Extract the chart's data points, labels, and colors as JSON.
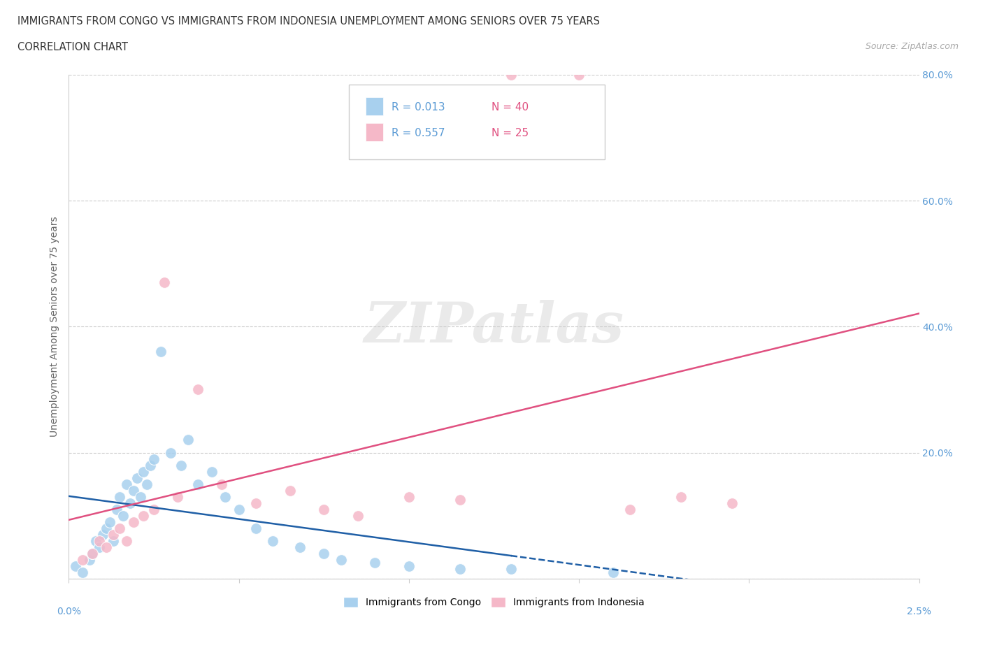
{
  "title_line1": "IMMIGRANTS FROM CONGO VS IMMIGRANTS FROM INDONESIA UNEMPLOYMENT AMONG SENIORS OVER 75 YEARS",
  "title_line2": "CORRELATION CHART",
  "source": "Source: ZipAtlas.com",
  "ylabel": "Unemployment Among Seniors over 75 years",
  "xlim": [
    0.0,
    2.5
  ],
  "ylim": [
    0.0,
    80.0
  ],
  "grid_color": "#cccccc",
  "legend_R_congo": "R = 0.013",
  "legend_N_congo": "N = 40",
  "legend_R_indonesia": "R = 0.557",
  "legend_N_indonesia": "N = 25",
  "congo_color": "#a8d0ee",
  "indonesia_color": "#f5b8c8",
  "congo_line_color": "#1f5fa6",
  "indonesia_line_color": "#e05080",
  "congo_scatter_x": [
    0.02,
    0.04,
    0.06,
    0.07,
    0.08,
    0.09,
    0.1,
    0.11,
    0.12,
    0.13,
    0.14,
    0.15,
    0.16,
    0.17,
    0.18,
    0.19,
    0.2,
    0.21,
    0.22,
    0.23,
    0.24,
    0.25,
    0.27,
    0.3,
    0.33,
    0.35,
    0.38,
    0.42,
    0.46,
    0.5,
    0.55,
    0.6,
    0.68,
    0.75,
    0.8,
    0.9,
    1.0,
    1.15,
    1.3,
    1.6
  ],
  "congo_scatter_y": [
    2.0,
    1.0,
    3.0,
    4.0,
    6.0,
    5.0,
    7.0,
    8.0,
    9.0,
    6.0,
    11.0,
    13.0,
    10.0,
    15.0,
    12.0,
    14.0,
    16.0,
    13.0,
    17.0,
    15.0,
    18.0,
    19.0,
    36.0,
    20.0,
    18.0,
    22.0,
    15.0,
    17.0,
    13.0,
    11.0,
    8.0,
    6.0,
    5.0,
    4.0,
    3.0,
    2.5,
    2.0,
    1.5,
    1.5,
    1.0
  ],
  "indonesia_scatter_x": [
    0.04,
    0.07,
    0.09,
    0.11,
    0.13,
    0.15,
    0.17,
    0.19,
    0.22,
    0.25,
    0.28,
    0.32,
    0.38,
    0.45,
    0.55,
    0.65,
    0.75,
    0.85,
    1.0,
    1.15,
    1.3,
    1.5,
    1.65,
    1.8,
    1.95
  ],
  "indonesia_scatter_y": [
    3.0,
    4.0,
    6.0,
    5.0,
    7.0,
    8.0,
    6.0,
    9.0,
    10.0,
    11.0,
    47.0,
    13.0,
    30.0,
    15.0,
    12.0,
    14.0,
    11.0,
    10.0,
    13.0,
    12.5,
    80.0,
    80.0,
    11.0,
    13.0,
    12.0
  ],
  "background_color": "#ffffff"
}
